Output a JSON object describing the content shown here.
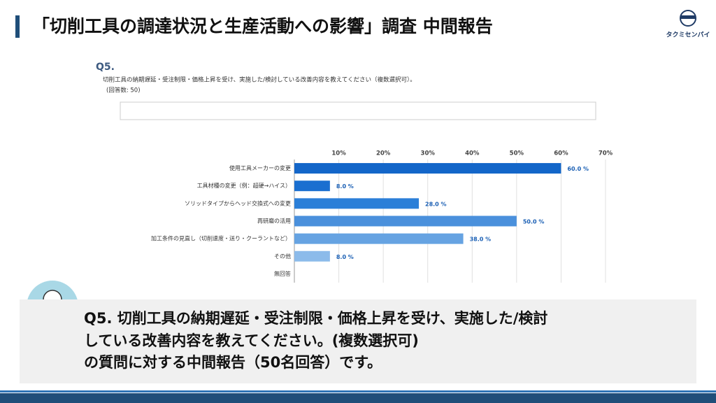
{
  "header": {
    "title": "「切削工具の調達状況と生産活動への影響」調査 中間報告",
    "logo": "タクミセンパイ"
  },
  "chart_data": {
    "type": "bar",
    "orientation": "horizontal",
    "question_number": "Q5.",
    "question": "切削工具の納期遅延・受注制限・価格上昇を受け、実施した/検討している改善内容を教えてください（複数選択可）。",
    "respondents": "(回答数: 50)",
    "categories": [
      "使用工具メーカーの変更",
      "工具材種の変更（例：超硬→ハイス）",
      "ソリッドタイプからヘッド交換式への変更",
      "再研磨の活用",
      "加工条件の見直し（切削速度・送り・クーラントなど）",
      "その他",
      "無回答"
    ],
    "values": [
      60,
      8,
      28,
      50,
      38,
      8,
      null
    ],
    "value_labels": [
      "60.0 %",
      "8.0 %",
      "28.0 %",
      "50.0 %",
      "38.0 %",
      "8.0 %",
      null
    ],
    "colors": [
      "#1366c9",
      "#1a6fd0",
      "#2b7fd8",
      "#4a90dc",
      "#66a3e2",
      "#8cbbea",
      "#aacdf0"
    ],
    "label_color": "#1a5fb4",
    "xlim": [
      0,
      70
    ],
    "xticks": [
      {
        "value": 10,
        "label": "10%"
      },
      {
        "value": 20,
        "label": "20%"
      },
      {
        "value": 30,
        "label": "30%"
      },
      {
        "value": 40,
        "label": "40%"
      },
      {
        "value": 50,
        "label": "50%"
      },
      {
        "value": 60,
        "label": "60%"
      },
      {
        "value": 70,
        "label": "70%"
      }
    ],
    "grid": true
  },
  "comment": {
    "lines": [
      "Q5.  切削工具の納期遅延・受注制限・価格上昇を受け、実施した/検討",
      "している改善内容を教えてください。(複数選択可)",
      "の質問に対する中間報告（50名回答）です。"
    ]
  }
}
